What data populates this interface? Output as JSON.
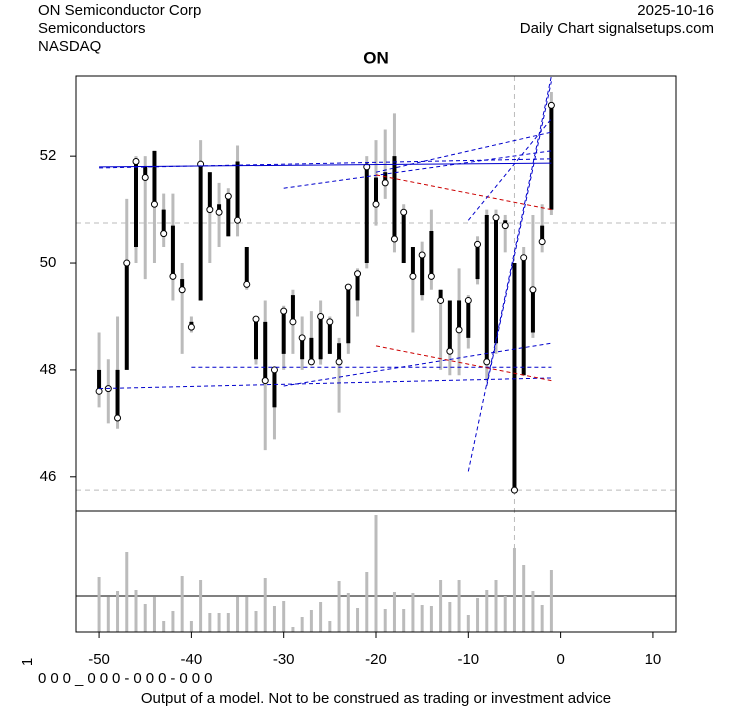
{
  "chart_data": {
    "type": "candlestick",
    "company": "ON Semiconductor Corp",
    "sector": "Semiconductors",
    "exchange": "NASDAQ",
    "date": "2025-10-16",
    "source": "Daily Chart signalsetups.com",
    "title": "ON",
    "footer": "Output of a model. Not to be construed as trading or investment advice",
    "code": "000_000-000-000",
    "side_mark": "1",
    "x": [
      -50,
      -49,
      -48,
      -47,
      -46,
      -45,
      -44,
      -43,
      -42,
      -41,
      -40,
      -39,
      -38,
      -37,
      -36,
      -35,
      -34,
      -33,
      -32,
      -31,
      -30,
      -29,
      -28,
      -27,
      -26,
      -25,
      -24,
      -23,
      -22,
      -21,
      -20,
      -19,
      -18,
      -17,
      -16,
      -15,
      -14,
      -13,
      -12,
      -11,
      -10,
      -9,
      -8,
      -7,
      -6,
      -5,
      -4,
      -3,
      -2,
      -1
    ],
    "open": [
      48.0,
      47.7,
      48.0,
      48.0,
      50.3,
      51.8,
      52.1,
      51.0,
      50.7,
      49.7,
      48.9,
      49.3,
      51.7,
      51.1,
      50.5,
      51.9,
      50.3,
      48.2,
      48.9,
      47.3,
      48.3,
      49.4,
      48.2,
      48.6,
      48.2,
      48.3,
      48.5,
      48.5,
      49.3,
      50.0,
      51.6,
      51.7,
      52.0,
      50.0,
      50.3,
      49.4,
      50.6,
      49.5,
      49.3,
      49.3,
      48.6,
      49.7,
      50.9,
      48.5,
      50.8,
      50.0,
      47.9,
      48.7,
      50.7,
      51.0
    ],
    "high": [
      48.7,
      48.2,
      49.0,
      51.2,
      52.0,
      52.0,
      52.1,
      51.3,
      51.3,
      50.0,
      49.0,
      52.3,
      51.7,
      51.5,
      51.4,
      52.2,
      50.3,
      49.0,
      49.3,
      48.0,
      49.2,
      49.5,
      49.0,
      49.1,
      49.3,
      49.0,
      48.6,
      49.6,
      49.9,
      52.0,
      52.3,
      52.5,
      52.8,
      51.1,
      50.3,
      50.4,
      51.0,
      49.5,
      49.3,
      49.9,
      49.4,
      50.5,
      51.0,
      51.0,
      50.9,
      50.0,
      50.3,
      50.9,
      51.1,
      53.2
    ],
    "low": [
      47.3,
      47.0,
      46.9,
      48.0,
      50.0,
      49.7,
      50.0,
      50.3,
      49.3,
      48.3,
      48.7,
      49.3,
      50.0,
      50.3,
      50.5,
      50.5,
      49.5,
      48.1,
      46.5,
      46.7,
      48.0,
      48.3,
      48.0,
      48.1,
      48.1,
      48.3,
      47.2,
      48.3,
      49.0,
      49.9,
      50.7,
      51.2,
      50.2,
      50.0,
      48.7,
      49.3,
      49.5,
      48.0,
      47.9,
      47.9,
      48.4,
      49.6,
      47.8,
      48.3,
      50.2,
      45.7,
      47.9,
      48.6,
      50.2,
      50.9
    ],
    "close": [
      47.6,
      47.65,
      47.1,
      50.0,
      51.9,
      51.6,
      51.1,
      50.55,
      49.75,
      49.5,
      48.8,
      51.85,
      51.0,
      50.95,
      51.25,
      50.8,
      49.6,
      48.95,
      47.8,
      48.0,
      49.1,
      48.9,
      48.6,
      48.15,
      49.0,
      48.9,
      48.15,
      49.55,
      49.8,
      51.8,
      51.1,
      51.5,
      50.45,
      50.95,
      49.75,
      50.15,
      49.75,
      49.3,
      48.35,
      48.75,
      49.3,
      50.35,
      48.15,
      50.85,
      50.7,
      45.75,
      50.1,
      49.5,
      50.4,
      52.95
    ],
    "volume": [
      55,
      35,
      41,
      80,
      42,
      28,
      35,
      11,
      21,
      56,
      11,
      52,
      19,
      19,
      19,
      35,
      35,
      21,
      54,
      26,
      31,
      5,
      15,
      22,
      30,
      11,
      51,
      39,
      24,
      60,
      117,
      23,
      40,
      23,
      39,
      27,
      26,
      52,
      30,
      52,
      17,
      34,
      42,
      52,
      36,
      84,
      67,
      41,
      27,
      62
    ],
    "vlim": [
      0,
      121
    ],
    "volume_ref": 36,
    "xlim": [
      -52.5,
      12.5
    ],
    "xticks": [
      -50,
      -40,
      -30,
      -20,
      -10,
      0,
      10
    ],
    "ylim": [
      45.36,
      53.5
    ],
    "yticks": [
      46,
      48,
      50,
      52
    ],
    "hlines": [
      50.75,
      45.75
    ],
    "vline": -5,
    "lines": [
      {
        "x": [
          -50,
          -1
        ],
        "y": [
          51.8,
          51.87
        ],
        "color": "#0000cc",
        "dashed": false
      },
      {
        "x": [
          -50,
          -1
        ],
        "y": [
          51.78,
          51.95
        ],
        "color": "#0000cc",
        "dashed": true
      },
      {
        "x": [
          -50,
          -1
        ],
        "y": [
          47.65,
          47.85
        ],
        "color": "#0000cc",
        "dashed": true
      },
      {
        "x": [
          -40,
          -1
        ],
        "y": [
          48.05,
          48.05
        ],
        "color": "#0000cc",
        "dashed": true
      },
      {
        "x": [
          -30,
          -1
        ],
        "y": [
          47.7,
          48.5
        ],
        "color": "#0000cc",
        "dashed": true
      },
      {
        "x": [
          -30,
          -1
        ],
        "y": [
          51.4,
          52.1
        ],
        "color": "#0000cc",
        "dashed": true
      },
      {
        "x": [
          -20,
          -1
        ],
        "y": [
          51.7,
          52.45
        ],
        "color": "#0000cc",
        "dashed": true
      },
      {
        "x": [
          -20,
          -1
        ],
        "y": [
          51.65,
          51.0
        ],
        "color": "#cc0000",
        "dashed": true
      },
      {
        "x": [
          -20,
          -1
        ],
        "y": [
          48.45,
          47.8
        ],
        "color": "#cc0000",
        "dashed": true
      },
      {
        "x": [
          -10,
          -1
        ],
        "y": [
          46.1,
          53.5
        ],
        "color": "#0000cc",
        "dashed": true
      },
      {
        "x": [
          -10,
          -1
        ],
        "y": [
          50.8,
          52.7
        ],
        "color": "#0000cc",
        "dashed": true
      },
      {
        "x": [
          -8,
          -1
        ],
        "y": [
          47.7,
          53.4
        ],
        "color": "#0000cc",
        "dashed": true
      }
    ]
  }
}
